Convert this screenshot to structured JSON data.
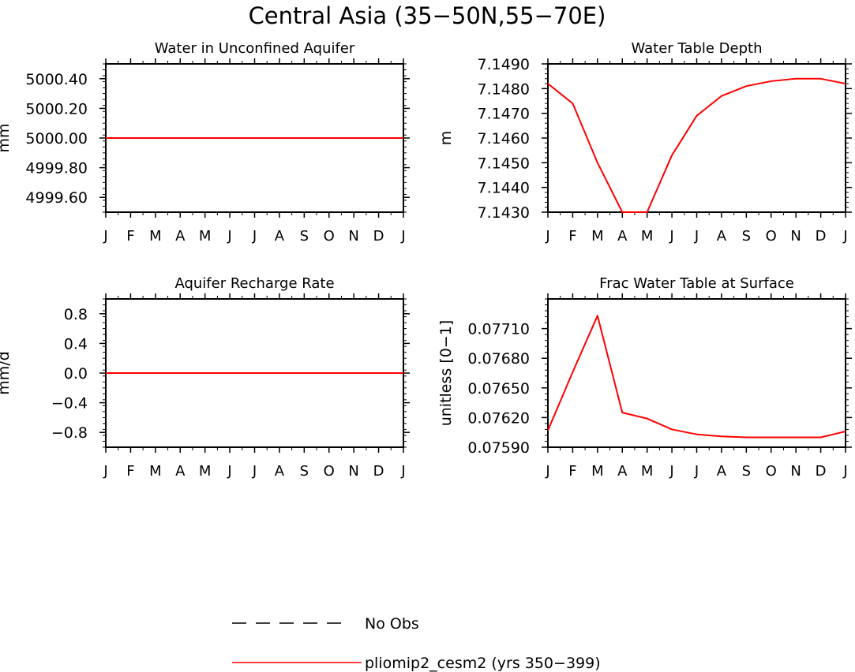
{
  "figure": {
    "title": "Central Asia (35−50N,55−70E)"
  },
  "legend": {
    "placement": "bottom-center",
    "entries": [
      {
        "label": "No Obs",
        "style": "dashed",
        "color": "#000000"
      },
      {
        "label": "pliomip2_cesm2 (yrs 350−399)",
        "style": "solid",
        "color": "#ff0000"
      }
    ]
  },
  "colors": {
    "series": "#ff0000",
    "axes": "#000000"
  },
  "chart_data": [
    {
      "type": "line",
      "title": "Water in Unconfined Aquifer",
      "xlabel": "",
      "ylabel": "mm",
      "categories": [
        "J",
        "F",
        "M",
        "A",
        "M",
        "J",
        "J",
        "A",
        "S",
        "O",
        "N",
        "D",
        "J"
      ],
      "ylim": [
        4999.5,
        5000.5
      ],
      "yticks": [
        4999.6,
        4999.8,
        5000.0,
        5000.2,
        5000.4
      ],
      "ytick_labels": [
        "4999.60",
        "4999.80",
        "5000.00",
        "5000.20",
        "5000.40"
      ],
      "series": [
        {
          "name": "pliomip2_cesm2 (yrs 350−399)",
          "values": [
            5000,
            5000,
            5000,
            5000,
            5000,
            5000,
            5000,
            5000,
            5000,
            5000,
            5000,
            5000,
            5000
          ]
        }
      ]
    },
    {
      "type": "line",
      "title": "Water Table Depth",
      "xlabel": "",
      "ylabel": "m",
      "categories": [
        "J",
        "F",
        "M",
        "A",
        "M",
        "J",
        "J",
        "A",
        "S",
        "O",
        "N",
        "D",
        "J"
      ],
      "ylim": [
        7.143,
        7.149
      ],
      "yticks": [
        7.143,
        7.144,
        7.145,
        7.146,
        7.147,
        7.148,
        7.149
      ],
      "ytick_labels": [
        "7.1430",
        "7.1440",
        "7.1450",
        "7.1460",
        "7.1470",
        "7.1480",
        "7.1490"
      ],
      "series": [
        {
          "name": "pliomip2_cesm2 (yrs 350−399)",
          "values": [
            7.1482,
            7.1474,
            7.145,
            7.143,
            7.143,
            7.1453,
            7.1469,
            7.1477,
            7.1481,
            7.1483,
            7.1484,
            7.1484,
            7.1482
          ]
        }
      ]
    },
    {
      "type": "line",
      "title": "Aquifer Recharge Rate",
      "xlabel": "",
      "ylabel": "mm/d",
      "categories": [
        "J",
        "F",
        "M",
        "A",
        "M",
        "J",
        "J",
        "A",
        "S",
        "O",
        "N",
        "D",
        "J"
      ],
      "ylim": [
        -1.0,
        1.0
      ],
      "yticks": [
        -0.8,
        -0.4,
        0.0,
        0.4,
        0.8
      ],
      "ytick_labels": [
        "−0.8",
        "−0.4",
        "0.0",
        "0.4",
        "0.8"
      ],
      "series": [
        {
          "name": "pliomip2_cesm2 (yrs 350−399)",
          "values": [
            0,
            0,
            0,
            0,
            0,
            0,
            0,
            0,
            0,
            0,
            0,
            0,
            0
          ]
        }
      ]
    },
    {
      "type": "line",
      "title": "Frac Water Table at Surface",
      "xlabel": "",
      "ylabel": "unitless [0−1]",
      "categories": [
        "J",
        "F",
        "M",
        "A",
        "M",
        "J",
        "J",
        "A",
        "S",
        "O",
        "N",
        "D",
        "J"
      ],
      "ylim": [
        0.0759,
        0.0774
      ],
      "yticks": [
        0.0759,
        0.0762,
        0.0765,
        0.0768,
        0.0771
      ],
      "ytick_labels": [
        "0.07590",
        "0.07620",
        "0.07650",
        "0.07680",
        "0.07710"
      ],
      "series": [
        {
          "name": "pliomip2_cesm2 (yrs 350−399)",
          "values": [
            0.07607,
            0.07666,
            0.07723,
            0.07625,
            0.07619,
            0.07608,
            0.07603,
            0.07601,
            0.076,
            0.076,
            0.076,
            0.076,
            0.07606
          ]
        }
      ]
    }
  ]
}
